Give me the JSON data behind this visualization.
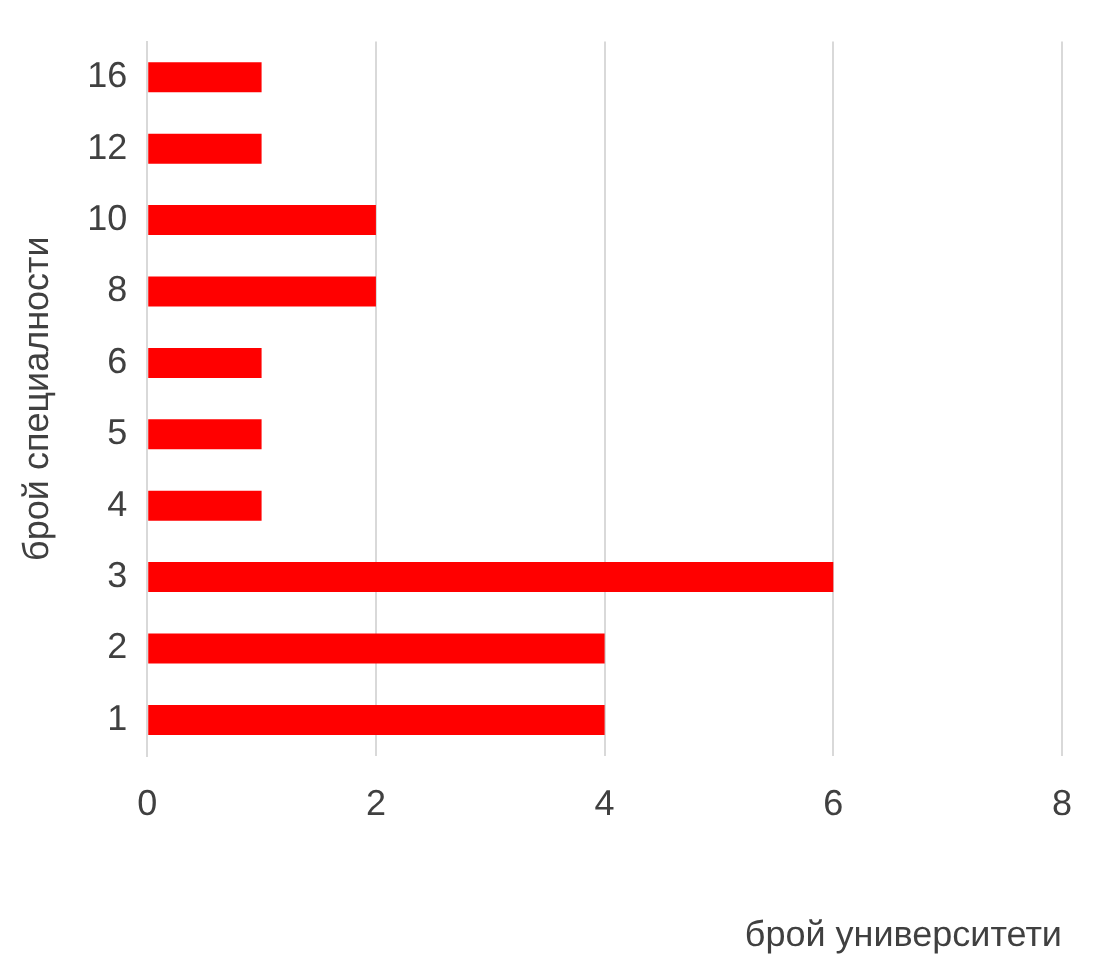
{
  "chart_data": {
    "type": "bar",
    "orientation": "horizontal",
    "categories": [
      "16",
      "12",
      "10",
      "8",
      "6",
      "5",
      "4",
      "3",
      "2",
      "1"
    ],
    "values": [
      1,
      1,
      2,
      2,
      1,
      1,
      1,
      6,
      4,
      4
    ],
    "color": "#ff0000",
    "xlim": [
      0,
      8
    ],
    "xticks": [
      0,
      2,
      4,
      6,
      8
    ],
    "grid": "x",
    "xlabel": "брой университети",
    "ylabel": "брой специалности"
  }
}
